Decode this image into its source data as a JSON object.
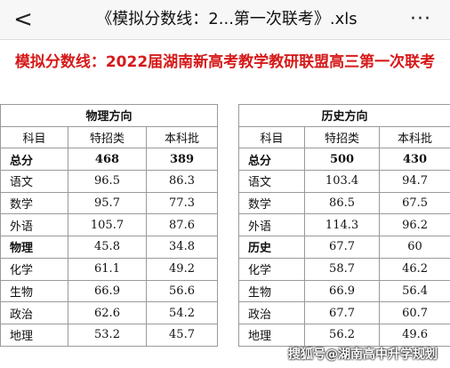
{
  "topbar": {
    "back_glyph": "<",
    "title": "《模拟分数线：2...第一次联考》.xls",
    "more_glyph": "···"
  },
  "sheet_title": "模拟分数线：2022届湖南新高考教学教研联盟高三第一次联考",
  "physics": {
    "heading": "物理方向",
    "headers": [
      "科目",
      "特招类",
      "本科批"
    ],
    "rows": [
      [
        "总分",
        "468",
        "389"
      ],
      [
        "语文",
        "96.5",
        "86.3"
      ],
      [
        "数学",
        "95.7",
        "77.3"
      ],
      [
        "外语",
        "105.7",
        "87.6"
      ],
      [
        "物理",
        "45.8",
        "34.8"
      ],
      [
        "化学",
        "61.1",
        "49.2"
      ],
      [
        "生物",
        "66.9",
        "56.6"
      ],
      [
        "政治",
        "62.6",
        "54.2"
      ],
      [
        "地理",
        "53.2",
        "45.7"
      ]
    ]
  },
  "history": {
    "heading": "历史方向",
    "headers": [
      "科目",
      "特招类",
      "本科批"
    ],
    "rows": [
      [
        "总分",
        "500",
        "430"
      ],
      [
        "语文",
        "103.4",
        "94.7"
      ],
      [
        "数学",
        "86.5",
        "67.5"
      ],
      [
        "外语",
        "114.3",
        "96.2"
      ],
      [
        "历史",
        "67.7",
        "60"
      ],
      [
        "化学",
        "58.7",
        "46.2"
      ],
      [
        "生物",
        "66.9",
        "56.4"
      ],
      [
        "政治",
        "67.7",
        "60.7"
      ],
      [
        "地理",
        "56.2",
        "49.6"
      ]
    ]
  },
  "watermark": "搜狐号@湖南高中升学规划"
}
